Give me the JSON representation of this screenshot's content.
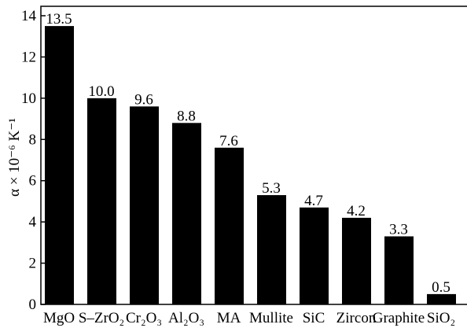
{
  "chart_data": {
    "type": "bar",
    "y_label": "α × 10⁻⁶ K⁻¹",
    "categories": [
      "MgO",
      "S–ZrO₂",
      "Cr₂O₃",
      "Al₂O₃",
      "MA",
      "Mullite",
      "SiC",
      "Zircon",
      "Graphite",
      "SiO₂"
    ],
    "values": [
      13.5,
      10.0,
      9.6,
      8.8,
      7.6,
      5.3,
      4.7,
      4.2,
      3.3,
      0.5
    ],
    "value_labels": [
      "13.5",
      "10.0",
      "9.6",
      "8.8",
      "7.6",
      "5.3",
      "4.7",
      "4.2",
      "3.3",
      "0.5"
    ],
    "color": "#000000",
    "ylim": [
      0,
      14
    ],
    "yticks": [
      0,
      2,
      4,
      6,
      8,
      10,
      12,
      14
    ]
  }
}
